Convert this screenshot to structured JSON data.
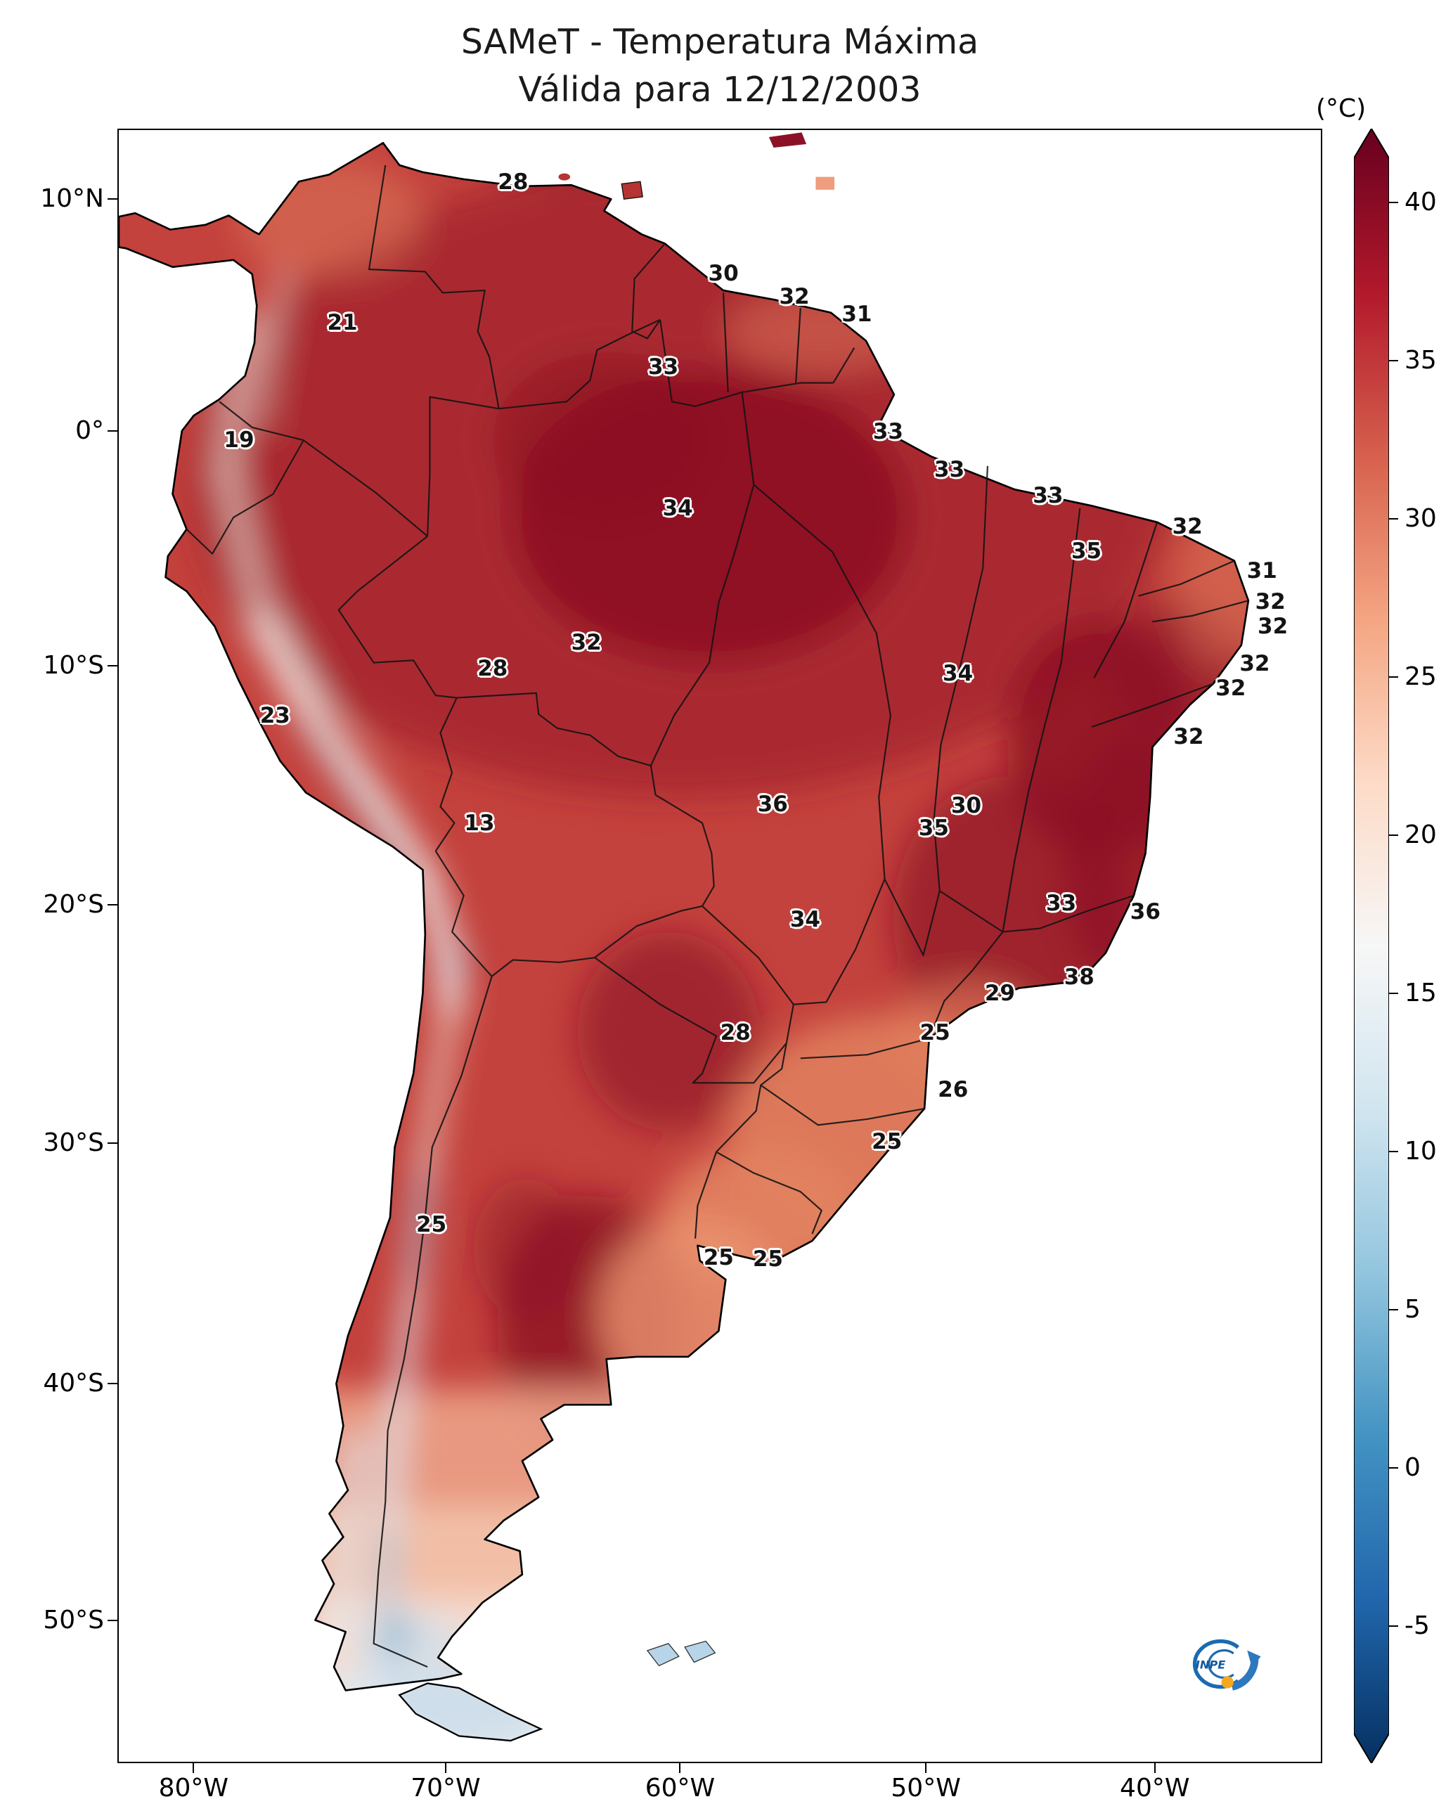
{
  "figure": {
    "title_line1": "SAMeT - Temperatura Máxima",
    "title_line2": "Válida para 12/12/2003",
    "colorbar_unit": "(°C)"
  },
  "axes": {
    "lat_ticks": [
      {
        "label": "10°N",
        "f": 0.043
      },
      {
        "label": "0°",
        "f": 0.185
      },
      {
        "label": "10°S",
        "f": 0.3286
      },
      {
        "label": "20°S",
        "f": 0.475
      },
      {
        "label": "30°S",
        "f": 0.6205
      },
      {
        "label": "40°S",
        "f": 0.7676
      },
      {
        "label": "50°S",
        "f": 0.9125
      }
    ],
    "lon_ticks": [
      {
        "label": "80°W",
        "f": 0.0632
      },
      {
        "label": "70°W",
        "f": 0.2724
      },
      {
        "label": "60°W",
        "f": 0.467
      },
      {
        "label": "50°W",
        "f": 0.671
      },
      {
        "label": "40°W",
        "f": 0.861
      }
    ]
  },
  "colorbar": {
    "ticks": [
      40,
      35,
      30,
      25,
      20,
      15,
      10,
      5,
      0,
      -5
    ],
    "palette": [
      "#67001f",
      "#b2182b",
      "#d6604d",
      "#f4a582",
      "#fddbc7",
      "#f7f7f7",
      "#d1e5f0",
      "#92c5de",
      "#4393c3",
      "#2166ac",
      "#053061"
    ]
  },
  "chart_data": {
    "type": "heatmap",
    "title": "SAMeT - Temperatura Máxima",
    "valid_date": "12/12/2003",
    "unit": "°C",
    "region": "South America",
    "colorbar_range": [
      -5,
      40
    ],
    "point_labels": [
      {
        "value": "28",
        "x_pct": 32.8,
        "y_pct": 3.2
      },
      {
        "value": "30",
        "x_pct": 50.3,
        "y_pct": 8.8
      },
      {
        "value": "32",
        "x_pct": 56.2,
        "y_pct": 10.2
      },
      {
        "value": "31",
        "x_pct": 61.4,
        "y_pct": 11.3
      },
      {
        "value": "21",
        "x_pct": 18.6,
        "y_pct": 11.8
      },
      {
        "value": "33",
        "x_pct": 45.3,
        "y_pct": 14.5
      },
      {
        "value": "33",
        "x_pct": 64.0,
        "y_pct": 18.5
      },
      {
        "value": "33",
        "x_pct": 69.1,
        "y_pct": 20.8
      },
      {
        "value": "19",
        "x_pct": 10.0,
        "y_pct": 19.0
      },
      {
        "value": "33",
        "x_pct": 77.3,
        "y_pct": 22.4
      },
      {
        "value": "35",
        "x_pct": 80.5,
        "y_pct": 25.8
      },
      {
        "value": "32",
        "x_pct": 88.9,
        "y_pct": 24.3
      },
      {
        "value": "31",
        "x_pct": 95.1,
        "y_pct": 27.0
      },
      {
        "value": "32",
        "x_pct": 95.8,
        "y_pct": 28.9
      },
      {
        "value": "32",
        "x_pct": 96.0,
        "y_pct": 30.4
      },
      {
        "value": "34",
        "x_pct": 46.5,
        "y_pct": 23.2
      },
      {
        "value": "32",
        "x_pct": 38.9,
        "y_pct": 31.4
      },
      {
        "value": "28",
        "x_pct": 31.1,
        "y_pct": 33.0
      },
      {
        "value": "34",
        "x_pct": 69.8,
        "y_pct": 33.3
      },
      {
        "value": "32",
        "x_pct": 94.5,
        "y_pct": 32.7
      },
      {
        "value": "32",
        "x_pct": 92.5,
        "y_pct": 34.2
      },
      {
        "value": "23",
        "x_pct": 13.0,
        "y_pct": 35.9
      },
      {
        "value": "32",
        "x_pct": 89.0,
        "y_pct": 37.2
      },
      {
        "value": "13",
        "x_pct": 30.0,
        "y_pct": 42.5
      },
      {
        "value": "36",
        "x_pct": 54.4,
        "y_pct": 41.3
      },
      {
        "value": "30",
        "x_pct": 70.5,
        "y_pct": 41.4
      },
      {
        "value": "35",
        "x_pct": 67.8,
        "y_pct": 42.8
      },
      {
        "value": "34",
        "x_pct": 57.1,
        "y_pct": 48.4
      },
      {
        "value": "33",
        "x_pct": 78.4,
        "y_pct": 47.4
      },
      {
        "value": "36",
        "x_pct": 85.4,
        "y_pct": 47.9
      },
      {
        "value": "38",
        "x_pct": 79.9,
        "y_pct": 51.9
      },
      {
        "value": "29",
        "x_pct": 73.3,
        "y_pct": 52.9
      },
      {
        "value": "28",
        "x_pct": 51.3,
        "y_pct": 55.3
      },
      {
        "value": "25",
        "x_pct": 67.9,
        "y_pct": 55.3
      },
      {
        "value": "26",
        "x_pct": 69.4,
        "y_pct": 58.8
      },
      {
        "value": "25",
        "x_pct": 63.9,
        "y_pct": 62.0
      },
      {
        "value": "25",
        "x_pct": 26.0,
        "y_pct": 67.1
      },
      {
        "value": "25",
        "x_pct": 49.9,
        "y_pct": 69.1
      },
      {
        "value": "25",
        "x_pct": 54.0,
        "y_pct": 69.2
      }
    ]
  },
  "logo": {
    "text": "INPE"
  }
}
